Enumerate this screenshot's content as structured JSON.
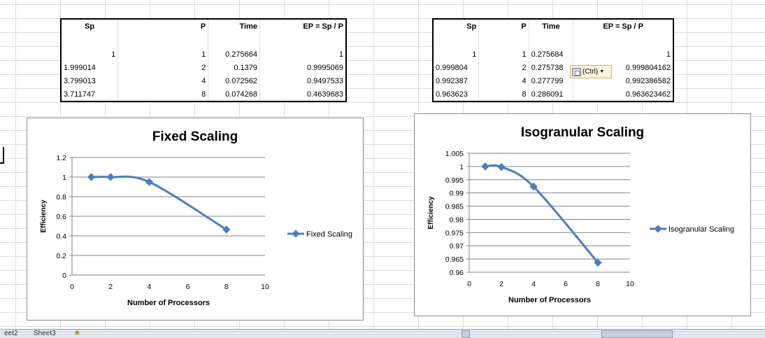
{
  "table1": {
    "headers": [
      "Sp",
      "P",
      "Time",
      "EP = Sp / P"
    ],
    "rows": [
      [
        "1",
        "1",
        "0.275664",
        "1"
      ],
      [
        "1.999014",
        "2",
        "0.1379",
        "0.9995069"
      ],
      [
        "3.799013",
        "4",
        "0.072562",
        "0.9497533"
      ],
      [
        "3.711747",
        "8",
        "0.074268",
        "0.4639683"
      ]
    ]
  },
  "table2": {
    "headers": [
      "Sp",
      "P",
      "Time",
      "EP = Sp / P"
    ],
    "rows": [
      [
        "1",
        "1",
        "0.275684",
        "1"
      ],
      [
        "0.999804",
        "2",
        "0.275738",
        "0.999804162"
      ],
      [
        "0.992387",
        "4",
        "0.277799",
        "0.992386582"
      ],
      [
        "0.963623",
        "8",
        "0.286091",
        "0.963623462"
      ]
    ]
  },
  "paste_options": {
    "label": "(Ctrl)",
    "icon": "clipboard-icon"
  },
  "sheet_tabs": [
    "eet2",
    "Sheet3"
  ],
  "colors": {
    "series": "#4a7ebb",
    "gridline": "#868686",
    "axis": "#868686"
  },
  "chart_data": [
    {
      "type": "line",
      "title": "Fixed Scaling",
      "xlabel": "Number of Processors",
      "ylabel": "Efficiency",
      "xlim": [
        0,
        10
      ],
      "ylim": [
        0,
        1.2
      ],
      "xticks": [
        0,
        2,
        4,
        6,
        8,
        10
      ],
      "yticks": [
        0,
        0.2,
        0.4,
        0.6,
        0.8,
        1,
        1.2
      ],
      "x": [
        1,
        2,
        4,
        8
      ],
      "series": [
        {
          "name": "Fixed Scaling",
          "values": [
            1,
            0.9995069,
            0.9497533,
            0.4639683
          ]
        }
      ],
      "grid": true,
      "legend": "right",
      "smooth": true
    },
    {
      "type": "line",
      "title": "Isogranular Scaling",
      "xlabel": "Number of Processors",
      "ylabel": "Efficiency",
      "xlim": [
        0,
        10
      ],
      "ylim": [
        0.96,
        1.005
      ],
      "xticks": [
        0,
        2,
        4,
        6,
        8,
        10
      ],
      "yticks": [
        0.96,
        0.965,
        0.97,
        0.975,
        0.98,
        0.985,
        0.99,
        0.995,
        1,
        1.005
      ],
      "yticklabels": [
        "0.96",
        "0.965",
        "0.97",
        "0.975",
        "0.98",
        "0.985",
        "0.99",
        "0.995",
        "1",
        "1.005"
      ],
      "x": [
        1,
        2,
        4,
        8
      ],
      "series": [
        {
          "name": "Isogranular Scaling",
          "values": [
            1,
            0.999804162,
            0.992386582,
            0.963623462
          ]
        }
      ],
      "grid": true,
      "legend": "right",
      "smooth": true
    }
  ]
}
